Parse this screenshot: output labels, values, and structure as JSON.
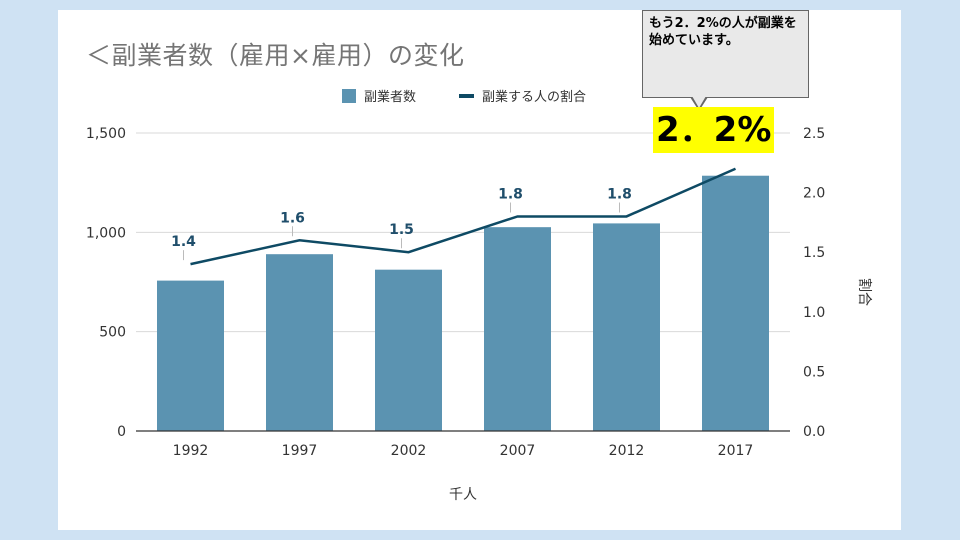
{
  "page": {
    "title": "＜副業者数（雇用×雇用）の変化"
  },
  "callout": {
    "text": "もう2．2%の人が副業を始めています。",
    "highlight": "2．2%"
  },
  "chart_data": {
    "type": "bar+line",
    "categories": [
      "1992",
      "1997",
      "2002",
      "2007",
      "2012",
      "2017"
    ],
    "series": [
      {
        "name": "副業者数",
        "type": "bar",
        "axis": "left",
        "values": [
          757,
          890,
          812,
          1026,
          1045,
          1285
        ]
      },
      {
        "name": "副業する人の割合",
        "type": "line",
        "axis": "right",
        "values": [
          1.4,
          1.6,
          1.5,
          1.8,
          1.8,
          2.2
        ],
        "data_labels": [
          "1.4",
          "1.6",
          "1.5",
          "1.8",
          "1.8",
          ""
        ]
      }
    ],
    "y_left": {
      "ylim": [
        0,
        1500
      ],
      "ticks": [
        "0",
        "500",
        "1,000",
        "1,500"
      ]
    },
    "y_right": {
      "ylim": [
        0,
        2.5
      ],
      "ticks": [
        "0.0",
        "0.5",
        "1.0",
        "1.5",
        "2.0",
        "2.5"
      ],
      "label": "割合"
    },
    "xlabel": "千人",
    "legend": "top",
    "colors": {
      "bar": "#5b93b1",
      "line": "#0e4a64",
      "label": "#1f4e6b"
    },
    "grid": true
  }
}
